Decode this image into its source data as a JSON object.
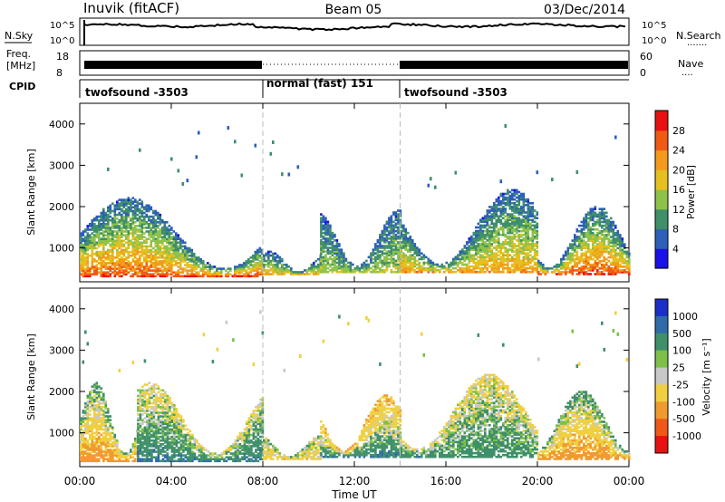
{
  "header": {
    "site": "Inuvik (fitACF)",
    "beam": "Beam 05",
    "date": "03/Dec/2014"
  },
  "noise_panel": {
    "left_label": "N.Sky",
    "right_label": "N.Search",
    "left_ticks": [
      "10^5",
      "10^0"
    ],
    "right_ticks": [
      "10^5",
      "10^0"
    ]
  },
  "freq_panel": {
    "left_label_1": "Freq.",
    "left_label_2": "[MHz]",
    "right_label": "Nave",
    "left_ticks": [
      "18",
      "8"
    ],
    "right_ticks": [
      "60",
      "0"
    ]
  },
  "cpid_panel": {
    "label": "CPID",
    "segments": [
      {
        "name": "twofsound -3503",
        "start_h": 0,
        "end_h": 8
      },
      {
        "name": "normal (fast) 151",
        "start_h": 8,
        "end_h": 14
      },
      {
        "name": "twofsound -3503",
        "start_h": 14,
        "end_h": 24
      }
    ]
  },
  "x_axis": {
    "label": "Time UT",
    "ticks": [
      "00:00",
      "04:00",
      "08:00",
      "12:00",
      "16:00",
      "20:00",
      "00:00"
    ],
    "range_hours": [
      0,
      24
    ]
  },
  "y_axis": {
    "label": "Slant Range [km]",
    "ticks": [
      "1000",
      "2000",
      "3000",
      "4000"
    ],
    "range_km": [
      180,
      4500
    ]
  },
  "power_colorbar": {
    "label": "Power [dB]",
    "ticks": [
      "4",
      "8",
      "12",
      "16",
      "20",
      "24",
      "28"
    ],
    "colors": [
      "#1a10e8",
      "#2d5fb8",
      "#3f8f6a",
      "#8ec24a",
      "#e5c020",
      "#f29b1c",
      "#f05a14",
      "#e81010"
    ]
  },
  "velocity_colorbar": {
    "label": "Velocity [m s⁻¹]",
    "ticks": [
      "1000",
      "500",
      "100",
      "25",
      "-25",
      "-100",
      "-500",
      "-1000"
    ],
    "colors": [
      "#1a2ec8",
      "#2f6ba8",
      "#3f8f6a",
      "#7cc04a",
      "#c8c8c8",
      "#f0d040",
      "#f09a30",
      "#f05818",
      "#e81010"
    ]
  },
  "chart_data": {
    "type": "heatmap",
    "title": "Inuvik (fitACF)",
    "xlabel": "Time UT",
    "ylabel": "Slant Range [km]",
    "xlim_hours": [
      0,
      24
    ],
    "ylim_km": [
      180,
      4500
    ],
    "panels": [
      {
        "quantity": "Power",
        "units": "dB",
        "colorbar_ticks": [
          4,
          8,
          12,
          16,
          20,
          24,
          28
        ],
        "regions": [
          {
            "t": [
              0.0,
              8.0
            ],
            "range_km": [
              300,
              2200
            ],
            "value_core": 27,
            "value_edge": 6
          },
          {
            "t": [
              8.0,
              10.5
            ],
            "range_km": [
              350,
              900
            ],
            "value_core": 20,
            "value_edge": 6
          },
          {
            "t": [
              10.5,
              14.0
            ],
            "range_km": [
              400,
              1900
            ],
            "value_core": 16,
            "value_edge": 6
          },
          {
            "t": [
              14.0,
              20.0
            ],
            "range_km": [
              400,
              2400
            ],
            "value_core": 22,
            "value_edge": 6
          },
          {
            "t": [
              20.0,
              24.0
            ],
            "range_km": [
              350,
              2000
            ],
            "value_core": 28,
            "value_edge": 6
          }
        ]
      },
      {
        "quantity": "Velocity",
        "units": "m s^-1",
        "colorbar_ticks": [
          1000,
          500,
          100,
          25,
          -25,
          -100,
          -500,
          -1000
        ],
        "regions": [
          {
            "t": [
              0.0,
              2.5
            ],
            "range_km": [
              300,
              2200
            ],
            "value_core": -500,
            "value_edge": 100
          },
          {
            "t": [
              2.5,
              8.0
            ],
            "range_km": [
              300,
              2200
            ],
            "value_core": 300,
            "value_edge": -100
          },
          {
            "t": [
              8.0,
              10.5
            ],
            "range_km": [
              350,
              900
            ],
            "value_core": -200,
            "value_edge": 25
          },
          {
            "t": [
              10.5,
              14.0
            ],
            "range_km": [
              400,
              1900
            ],
            "value_core": 300,
            "value_edge": -300
          },
          {
            "t": [
              14.0,
              20.0
            ],
            "range_km": [
              400,
              2400
            ],
            "value_core": 200,
            "value_edge": -100
          },
          {
            "t": [
              20.0,
              24.0
            ],
            "range_km": [
              350,
              2000
            ],
            "value_core": -500,
            "value_edge": 100
          }
        ]
      }
    ]
  }
}
